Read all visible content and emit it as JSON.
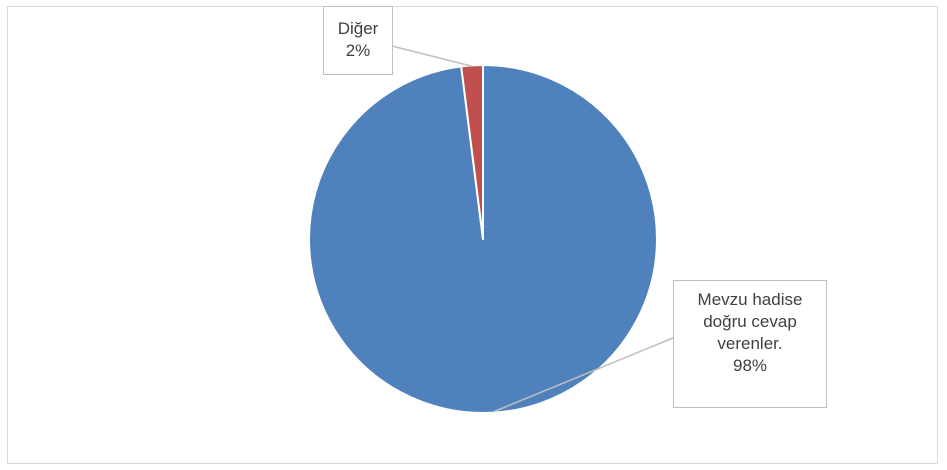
{
  "chart_data": {
    "type": "pie",
    "title": "",
    "slices": [
      {
        "name_lines": [
          "Mevzu hadise",
          "doğru cevap",
          "verenler."
        ],
        "percent_label": "98%",
        "value": 98,
        "color": "#4f81bd"
      },
      {
        "name_lines": [
          "Diğer"
        ],
        "percent_label": "2%",
        "value": 2,
        "color": "#c0504d"
      }
    ],
    "legend": "none",
    "leader_line_color": "#bfbfbf"
  }
}
